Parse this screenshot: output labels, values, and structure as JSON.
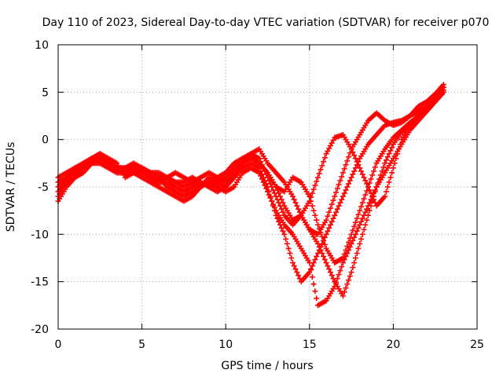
{
  "chart_data": {
    "type": "scatter",
    "title": "Day 110 of 2023, Sidereal Day-to-day VTEC variation (SDTVAR) for receiver p070",
    "xlabel": "GPS time / hours",
    "ylabel": "SDTVAR / TECUs",
    "xlim": [
      0,
      25
    ],
    "ylim": [
      -20,
      10
    ],
    "xticks": [
      0,
      5,
      10,
      15,
      20,
      25
    ],
    "yticks": [
      -20,
      -15,
      -10,
      -5,
      0,
      5,
      10
    ],
    "grid": true,
    "legend": "none",
    "marker": "plus",
    "colors": {
      "series": "#ff0000"
    },
    "series": [
      {
        "x": [
          0.0,
          0.5,
          1.0,
          1.5,
          2.0,
          2.5,
          3.0,
          3.5,
          4.0,
          4.5,
          5.0,
          5.5,
          6.0,
          6.5,
          7.0,
          7.5,
          8.0,
          8.5,
          9.0,
          9.5,
          10.0,
          10.5,
          11.0,
          11.5,
          12.0,
          12.5,
          13.0,
          13.5,
          14.0,
          14.5,
          15.0,
          15.5,
          16.0,
          16.5,
          17.0,
          17.5,
          18.0,
          18.5,
          19.0,
          19.5,
          20.0,
          20.5,
          21.0,
          21.5,
          22.0,
          22.5,
          23.0
        ],
        "y": [
          -6.5,
          -5.0,
          -4.0,
          -3.5,
          -2.5,
          -2.0,
          -2.2,
          -3.0,
          -3.5,
          -3.0,
          -3.5,
          -4.0,
          -4.5,
          -4.5,
          -5.0,
          -5.5,
          -5.0,
          -4.5,
          -5.0,
          -5.5,
          -5.0,
          -4.0,
          -3.0,
          -2.5,
          -3.0,
          -5.0,
          -8.0,
          -10.0,
          -13.0,
          -15.0,
          -14.0,
          -12.0,
          -10.0,
          -8.0,
          -6.0,
          -4.0,
          -2.0,
          -0.5,
          0.5,
          1.5,
          1.8,
          2.0,
          2.5,
          3.0,
          3.5,
          4.5,
          5.5
        ]
      },
      {
        "x": [
          0.0,
          0.5,
          1.0,
          1.5,
          2.0,
          2.5,
          3.0,
          3.5,
          4.0,
          4.5,
          5.0,
          5.5,
          6.0,
          6.5,
          7.0,
          7.5,
          8.0,
          8.5,
          9.0,
          9.5,
          10.0,
          10.5,
          11.0,
          11.5,
          12.0,
          12.5,
          13.0,
          13.5,
          14.0,
          14.5,
          15.0,
          15.5,
          16.0,
          16.5,
          17.0,
          17.5,
          18.0,
          18.5,
          19.0,
          19.5,
          20.0,
          20.5,
          21.0,
          21.5,
          22.0,
          22.5,
          23.0
        ],
        "y": [
          -5.5,
          -4.5,
          -3.5,
          -3.0,
          -2.0,
          -1.5,
          -2.0,
          -2.5,
          -4.0,
          -3.5,
          -3.0,
          -3.5,
          -4.0,
          -5.0,
          -5.5,
          -6.0,
          -5.5,
          -5.0,
          -4.0,
          -4.5,
          -4.0,
          -3.0,
          -2.0,
          -1.5,
          -2.0,
          -4.0,
          -6.0,
          -8.0,
          -9.0,
          -8.0,
          -9.5,
          -11.0,
          -13.0,
          -15.0,
          -16.5,
          -14.0,
          -11.0,
          -8.0,
          -5.0,
          -2.5,
          -0.5,
          0.8,
          1.5,
          2.5,
          3.5,
          4.0,
          5.0
        ]
      },
      {
        "x": [
          0.0,
          0.5,
          1.0,
          1.5,
          2.0,
          2.5,
          3.0,
          3.5,
          4.0,
          4.5,
          5.0,
          5.5,
          6.0,
          6.5,
          7.0,
          7.5,
          8.0,
          8.5,
          9.0,
          9.5,
          10.0,
          10.5,
          11.0,
          11.5,
          12.0,
          12.5,
          13.0,
          13.5,
          14.0,
          14.5,
          15.0,
          15.5,
          16.0,
          16.5,
          17.0,
          17.5,
          18.0,
          18.5,
          19.0,
          19.5,
          20.0,
          20.5,
          21.0,
          21.5,
          22.0,
          22.5,
          23.0
        ],
        "y": [
          -5.0,
          -4.0,
          -3.0,
          -3.0,
          -2.5,
          -2.0,
          -2.5,
          -3.0,
          -3.0,
          -2.5,
          -3.0,
          -3.5,
          -4.0,
          -4.0,
          -4.5,
          -5.0,
          -4.5,
          -4.0,
          -3.5,
          -4.0,
          -3.5,
          -2.5,
          -2.0,
          -1.8,
          -2.5,
          -3.5,
          -5.0,
          -5.5,
          -4.0,
          -4.5,
          -6.0,
          -9.0,
          -11.5,
          -13.0,
          -12.5,
          -10.0,
          -7.5,
          -5.0,
          -2.5,
          -1.0,
          0.2,
          1.0,
          1.8,
          2.5,
          3.2,
          4.2,
          5.5
        ]
      },
      {
        "x": [
          0.0,
          0.5,
          1.0,
          1.5,
          2.0,
          2.5,
          3.0,
          3.5,
          4.0,
          4.5,
          5.0,
          5.5,
          6.0,
          6.5,
          7.0,
          7.5,
          8.0,
          8.5,
          9.0,
          9.5,
          10.0,
          10.5,
          11.0,
          11.5,
          12.0,
          12.5,
          13.0,
          13.5,
          14.0,
          14.5,
          15.0,
          15.5,
          16.0,
          16.5,
          17.0,
          17.5,
          18.0,
          18.5,
          19.0,
          19.5,
          20.0,
          20.5,
          21.0,
          21.5,
          22.0,
          22.5,
          23.0
        ],
        "y": [
          -4.5,
          -4.0,
          -3.5,
          -2.5,
          -2.0,
          -1.5,
          -2.2,
          -3.0,
          -3.5,
          -3.0,
          -3.5,
          -4.0,
          -4.5,
          -4.0,
          -3.5,
          -4.0,
          -4.5,
          -5.0,
          -4.5,
          -4.0,
          -4.5,
          -3.5,
          -2.5,
          -1.5,
          -1.0,
          -2.5,
          -3.5,
          -4.5,
          -6.0,
          -8.0,
          -9.5,
          -10.0,
          -8.5,
          -6.0,
          -3.5,
          -1.0,
          0.5,
          2.0,
          2.8,
          2.0,
          1.5,
          1.8,
          2.5,
          3.5,
          4.0,
          4.8,
          5.8
        ]
      },
      {
        "x": [
          0.0,
          0.5,
          1.0,
          1.5,
          2.0,
          2.5,
          3.0,
          3.5,
          4.0,
          4.5,
          5.0,
          5.5,
          6.0,
          6.5,
          7.0,
          7.5,
          8.0,
          8.5,
          9.0,
          9.5,
          10.0,
          10.5,
          11.0,
          11.5,
          12.0,
          12.5,
          13.0,
          13.5,
          14.0,
          14.5,
          15.0,
          15.5,
          16.0,
          16.5,
          17.0,
          17.5,
          18.0,
          18.5,
          19.0,
          19.5,
          20.0,
          20.5,
          21.0,
          21.5,
          22.0,
          22.5,
          23.0
        ],
        "y": [
          -4.0,
          -3.5,
          -3.0,
          -2.5,
          -2.0,
          -2.0,
          -2.5,
          -3.0,
          -3.0,
          -3.0,
          -3.0,
          -3.5,
          -3.5,
          -4.0,
          -4.5,
          -4.5,
          -4.0,
          -4.5,
          -5.0,
          -4.5,
          -5.0,
          -4.0,
          -2.5,
          -2.0,
          -2.5,
          -3.5,
          -5.0,
          -7.0,
          -8.5,
          -8.0,
          -6.5,
          -4.0,
          -1.5,
          0.2,
          0.5,
          -1.0,
          -3.0,
          -5.0,
          -7.0,
          -6.0,
          -3.0,
          0.0,
          1.5,
          2.5,
          3.0,
          4.0,
          5.2
        ]
      },
      {
        "x": [
          0.0,
          0.5,
          1.0,
          1.5,
          2.0,
          2.5,
          3.0,
          3.5,
          4.0,
          4.5,
          5.0,
          5.5,
          6.0,
          6.5,
          7.0,
          7.5,
          8.0,
          8.5,
          9.0,
          9.5,
          10.0,
          10.5,
          11.0,
          11.5,
          12.0,
          12.5,
          13.0,
          13.5,
          14.0,
          14.5,
          15.0,
          15.5,
          16.0,
          16.5,
          17.0,
          17.5,
          18.0,
          18.5,
          19.0,
          19.5,
          20.0,
          20.5,
          21.0,
          21.5,
          22.0,
          22.5,
          23.0
        ],
        "y": [
          -6.0,
          -4.5,
          -4.0,
          -3.0,
          -2.5,
          -2.5,
          -3.0,
          -3.5,
          -3.5,
          -3.5,
          -4.0,
          -4.5,
          -5.0,
          -5.5,
          -6.0,
          -6.5,
          -6.0,
          -5.0,
          -4.5,
          -5.0,
          -5.5,
          -5.0,
          -3.5,
          -3.0,
          -3.5,
          -5.5,
          -7.5,
          -9.0,
          -10.0,
          -11.5,
          -13.0,
          -17.5,
          -17.0,
          -15.5,
          -13.0,
          -11.0,
          -9.0,
          -7.0,
          -5.0,
          -3.5,
          -2.0,
          -0.5,
          1.0,
          2.0,
          3.0,
          4.0,
          5.0
        ]
      }
    ]
  }
}
